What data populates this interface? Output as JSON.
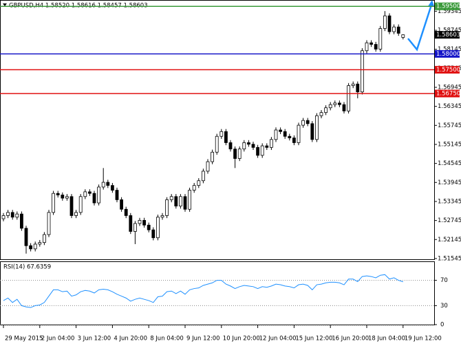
{
  "chart_data": [
    {
      "type": "candlestick",
      "title": "GBPUSD,H4  1.58520 1.58616 1.58457 1.58603",
      "categories": [
        "29 May 2015",
        null,
        null,
        null,
        null,
        null,
        null,
        null,
        "2 Jun 04:00",
        null,
        null,
        null,
        null,
        null,
        null,
        null,
        "3 Jun 12:00",
        null,
        null,
        null,
        null,
        null,
        null,
        null,
        "4 Jun 20:00",
        null,
        null,
        null,
        null,
        null,
        null,
        null,
        "8 Jun 04:00",
        null,
        null,
        null,
        null,
        null,
        null,
        null,
        "9 Jun 12:00",
        null,
        null,
        null,
        null,
        null,
        null,
        null,
        "10 Jun 20:00",
        null,
        null,
        null,
        null,
        null,
        null,
        null,
        "12 Jun 04:00",
        null,
        null,
        null,
        null,
        null,
        null,
        null,
        "15 Jun 12:00",
        null,
        null,
        null,
        null,
        null,
        null,
        null,
        "16 Jun 20:00",
        null,
        null,
        null,
        null,
        null,
        null,
        null,
        "18 Jun 04:00",
        null,
        null,
        null,
        null,
        null,
        null,
        null,
        "19 Jun 12:00"
      ],
      "open": [
        1.528,
        1.529,
        1.53,
        1.5285,
        1.5295,
        1.525,
        1.5195,
        1.5185,
        1.52,
        1.5205,
        1.523,
        1.53,
        1.536,
        1.5355,
        1.5345,
        1.535,
        1.529,
        1.53,
        1.535,
        1.5365,
        1.536,
        1.533,
        1.538,
        1.5395,
        1.5385,
        1.537,
        1.534,
        1.531,
        1.529,
        1.524,
        1.5265,
        1.5275,
        1.526,
        1.5245,
        1.522,
        1.5285,
        1.529,
        1.534,
        1.535,
        1.532,
        1.535,
        1.531,
        1.537,
        1.5385,
        1.54,
        1.543,
        1.546,
        1.549,
        1.554,
        1.5555,
        1.552,
        1.55,
        1.547,
        1.55,
        1.552,
        1.5515,
        1.5505,
        1.548,
        1.551,
        1.5505,
        1.553,
        1.556,
        1.5555,
        1.554,
        1.5535,
        1.552,
        1.5575,
        1.559,
        1.558,
        1.553,
        1.5605,
        1.5615,
        1.563,
        1.564,
        1.5645,
        1.564,
        1.562,
        1.57,
        1.5705,
        1.568,
        1.581,
        1.5835,
        1.583,
        1.5815,
        1.588,
        1.592,
        1.587,
        1.5885,
        1.5852
      ],
      "high": [
        1.5298,
        1.5308,
        1.5308,
        1.5303,
        1.5303,
        1.5258,
        1.5203,
        1.5208,
        1.5213,
        1.5238,
        1.5308,
        1.5368,
        1.5368,
        1.5363,
        1.5358,
        1.5358,
        1.5308,
        1.5358,
        1.5373,
        1.5373,
        1.5368,
        1.5388,
        1.544,
        1.5403,
        1.5393,
        1.5378,
        1.5348,
        1.5318,
        1.5298,
        1.5273,
        1.5283,
        1.5283,
        1.5268,
        1.5253,
        1.5293,
        1.5298,
        1.5348,
        1.5358,
        1.5358,
        1.5358,
        1.5358,
        1.5378,
        1.5393,
        1.5408,
        1.5438,
        1.5468,
        1.5498,
        1.5548,
        1.5563,
        1.5563,
        1.5528,
        1.5508,
        1.5508,
        1.5528,
        1.5528,
        1.5523,
        1.5513,
        1.5518,
        1.5518,
        1.5538,
        1.5568,
        1.5568,
        1.5563,
        1.5548,
        1.5543,
        1.5583,
        1.5598,
        1.5598,
        1.5588,
        1.5613,
        1.5623,
        1.5638,
        1.5648,
        1.5653,
        1.5653,
        1.5648,
        1.5708,
        1.5713,
        1.5713,
        1.5818,
        1.5843,
        1.5843,
        1.5838,
        1.5888,
        1.5935,
        1.5928,
        1.5893,
        1.5893,
        1.58616
      ],
      "low": [
        1.5272,
        1.5282,
        1.5277,
        1.5277,
        1.5242,
        1.517,
        1.5177,
        1.5177,
        1.5192,
        1.5197,
        1.5222,
        1.5292,
        1.5347,
        1.5337,
        1.5337,
        1.5282,
        1.5282,
        1.5292,
        1.5342,
        1.5352,
        1.5322,
        1.5322,
        1.5372,
        1.5377,
        1.5362,
        1.5332,
        1.5302,
        1.5282,
        1.5232,
        1.52,
        1.5257,
        1.5252,
        1.5237,
        1.5212,
        1.5212,
        1.5277,
        1.5282,
        1.5332,
        1.5312,
        1.5312,
        1.5302,
        1.5302,
        1.5362,
        1.5377,
        1.5392,
        1.5422,
        1.5452,
        1.5482,
        1.5532,
        1.5512,
        1.5492,
        1.544,
        1.5462,
        1.5492,
        1.5507,
        1.5497,
        1.5472,
        1.5472,
        1.5497,
        1.5497,
        1.5522,
        1.5547,
        1.5532,
        1.5527,
        1.5512,
        1.5512,
        1.5567,
        1.5572,
        1.5522,
        1.5522,
        1.5597,
        1.5607,
        1.5622,
        1.5632,
        1.5632,
        1.5612,
        1.5612,
        1.5692,
        1.566,
        1.5672,
        1.5802,
        1.5822,
        1.5807,
        1.5807,
        1.5872,
        1.5862,
        1.5862,
        1.5857,
        1.58457
      ],
      "close": [
        1.529,
        1.53,
        1.5285,
        1.5295,
        1.525,
        1.5195,
        1.5185,
        1.52,
        1.5205,
        1.523,
        1.53,
        1.536,
        1.5355,
        1.5345,
        1.535,
        1.529,
        1.53,
        1.535,
        1.5365,
        1.536,
        1.533,
        1.538,
        1.5395,
        1.5385,
        1.537,
        1.534,
        1.531,
        1.529,
        1.524,
        1.5265,
        1.5275,
        1.526,
        1.5245,
        1.522,
        1.5285,
        1.529,
        1.534,
        1.535,
        1.532,
        1.535,
        1.531,
        1.537,
        1.5385,
        1.54,
        1.543,
        1.546,
        1.549,
        1.554,
        1.5555,
        1.552,
        1.55,
        1.547,
        1.55,
        1.552,
        1.5515,
        1.5505,
        1.548,
        1.551,
        1.5505,
        1.553,
        1.556,
        1.5555,
        1.554,
        1.5535,
        1.552,
        1.5575,
        1.559,
        1.558,
        1.553,
        1.5605,
        1.5615,
        1.563,
        1.564,
        1.5645,
        1.564,
        1.562,
        1.57,
        1.5705,
        1.568,
        1.581,
        1.5835,
        1.583,
        1.5815,
        1.588,
        1.592,
        1.587,
        1.5885,
        1.5865,
        1.58603
      ],
      "ylim": [
        1.515,
        1.597
      ],
      "yticks": [
        1.59345,
        1.58745,
        1.58145,
        1.57545,
        1.56945,
        1.56345,
        1.55745,
        1.55145,
        1.54545,
        1.53945,
        1.53345,
        1.52745,
        1.52145,
        1.51545
      ],
      "levels": [
        {
          "value": 1.595,
          "label": "1.59500",
          "color": "#3a9a3a"
        },
        {
          "value": 1.58,
          "label": "1.58000",
          "color": "#1515c8"
        },
        {
          "value": 1.575,
          "label": "1.57500",
          "color": "#e01010"
        },
        {
          "value": 1.5675,
          "label": "1.56750",
          "color": "#e01010"
        }
      ],
      "color": "#000000"
    },
    {
      "type": "line",
      "title": "RSI(14) 67.6359",
      "values": [
        38,
        42,
        35,
        40,
        30,
        28,
        27,
        30,
        31,
        35,
        45,
        55,
        55,
        52,
        53,
        45,
        47,
        52,
        54,
        53,
        50,
        55,
        56,
        55,
        52,
        48,
        45,
        42,
        37,
        40,
        42,
        40,
        38,
        35,
        44,
        45,
        52,
        53,
        49,
        53,
        48,
        55,
        57,
        58,
        62,
        64,
        66,
        70,
        70,
        64,
        61,
        57,
        60,
        62,
        61,
        60,
        57,
        60,
        59,
        61,
        64,
        63,
        61,
        60,
        58,
        63,
        64,
        62,
        55,
        63,
        64,
        66,
        67,
        67,
        66,
        63,
        72,
        72,
        68,
        76,
        77,
        76,
        74,
        78,
        79,
        72,
        74,
        70,
        67.6359
      ],
      "ylim": [
        0,
        100
      ],
      "yticks": [
        70,
        30,
        0
      ],
      "color": "#1e90ff"
    }
  ]
}
